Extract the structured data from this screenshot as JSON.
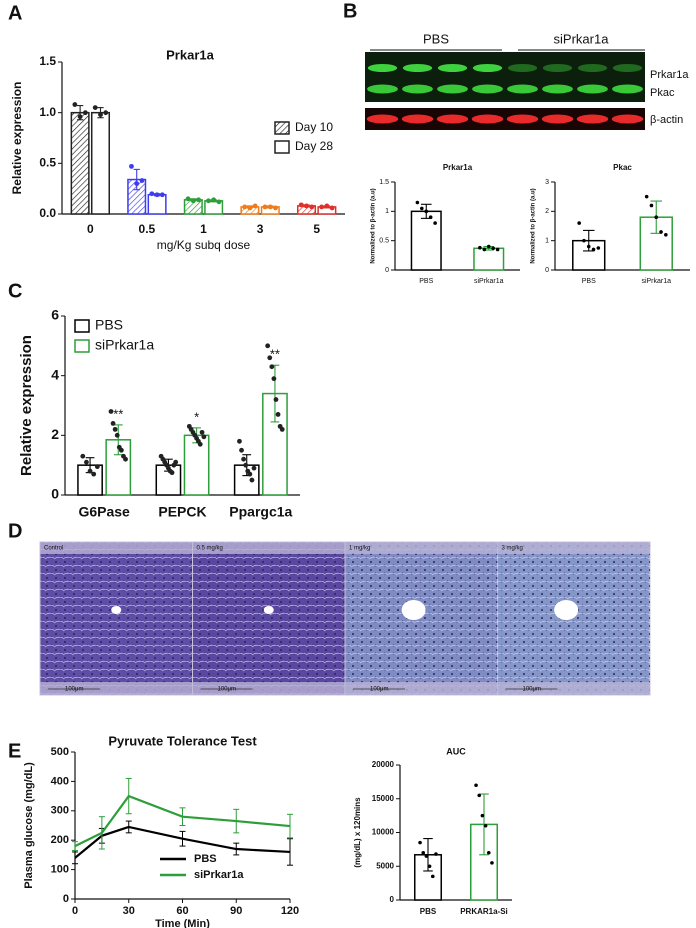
{
  "panel_labels": [
    "A",
    "B",
    "C",
    "D",
    "E"
  ],
  "blot": {
    "groups": [
      "PBS",
      "siPrkar1a"
    ],
    "bands": [
      "Prkar1a",
      "Pkac",
      "β-actin"
    ]
  },
  "histology": {
    "panels": [
      {
        "label": "Control",
        "scale": "100μm"
      },
      {
        "label": "0.5 mg/kg",
        "scale": "100μm"
      },
      {
        "label": "1 mg/kg",
        "scale": "100μm"
      },
      {
        "label": "3 mg/kg",
        "scale": "100μm"
      }
    ]
  },
  "chart_data": [
    {
      "type": "bar",
      "title": "Prkar1a",
      "x_label": "mg/Kg subq dose",
      "y_label": "Relative expression",
      "categories": [
        "0",
        "0.5",
        "1",
        "3",
        "5"
      ],
      "category_colors": [
        "#222222",
        "#3d3df0",
        "#2e9e3a",
        "#f07b1a",
        "#e0302a"
      ],
      "series": [
        {
          "name": "Day 10",
          "color": "#222222",
          "hatch": true,
          "values": [
            1.0,
            0.34,
            0.14,
            0.07,
            0.08
          ],
          "errors": [
            0.07,
            0.1,
            0.01,
            0.01,
            0.01
          ],
          "points": [
            [
              1.08,
              0.96,
              1.0
            ],
            [
              0.47,
              0.3,
              0.33
            ],
            [
              0.15,
              0.13,
              0.14
            ],
            [
              0.07,
              0.06,
              0.08
            ],
            [
              0.09,
              0.08,
              0.07
            ]
          ]
        },
        {
          "name": "Day 28",
          "color": "#222222",
          "values": [
            1.0,
            0.19,
            0.13,
            0.07,
            0.07
          ],
          "errors": [
            0.05,
            0.01,
            0.01,
            0.01,
            0.01
          ],
          "points": [
            [
              1.05,
              0.98,
              1.0
            ],
            [
              0.2,
              0.19,
              0.19
            ],
            [
              0.13,
              0.14,
              0.12
            ],
            [
              0.07,
              0.07,
              0.06
            ],
            [
              0.07,
              0.08,
              0.06
            ]
          ]
        }
      ],
      "ylim": [
        0,
        1.5
      ],
      "yticks": [
        {
          "value": 0,
          "label": "0.0"
        },
        0.5,
        {
          "value": 1,
          "label": "1.0"
        },
        1.5
      ],
      "legend": "center right"
    },
    {
      "type": "bar",
      "title": "Prkar1a",
      "y_label": "Normalized to β-actin (a.u)",
      "categories": [
        "PBS",
        "siPrkar1a"
      ],
      "colors": [
        "#000000",
        "#2e9e3a"
      ],
      "point_color": "#000000",
      "values": [
        1.0,
        0.37
      ],
      "errors": [
        0.12,
        0.03
      ],
      "points": [
        [
          1.15,
          1.05,
          1.0,
          0.9,
          0.8
        ],
        [
          0.38,
          0.35,
          0.4,
          0.37,
          0.35
        ]
      ],
      "ylim": [
        0,
        1.5
      ],
      "yticks": [
        0,
        0.5,
        1,
        1.5
      ]
    },
    {
      "type": "bar",
      "title": "Pkac",
      "y_label": "Normalized to β-actin (a.u)",
      "categories": [
        "PBS",
        "siPrkar1a"
      ],
      "colors": [
        "#000000",
        "#2e9e3a"
      ],
      "point_color": "#000000",
      "values": [
        1.0,
        1.8
      ],
      "errors": [
        0.35,
        0.55
      ],
      "points": [
        [
          1.6,
          1.0,
          0.8,
          0.7,
          0.75
        ],
        [
          2.5,
          2.2,
          1.8,
          1.3,
          1.2
        ]
      ],
      "ylim": [
        0,
        3
      ],
      "yticks": [
        0,
        1,
        2,
        3
      ]
    },
    {
      "type": "bar",
      "y_label": "Relative expression",
      "categories": [
        "G6Pase",
        "PEPCK",
        "Ppargc1a"
      ],
      "point_color": "#222222",
      "series": [
        {
          "name": "PBS",
          "color": "#000000",
          "values": [
            1.0,
            1.0,
            1.0
          ],
          "errors": [
            0.25,
            0.2,
            0.35
          ],
          "points": [
            [
              1.3,
              1.1,
              0.8,
              0.7,
              0.95
            ],
            [
              1.3,
              1.2,
              1.1,
              1.0,
              0.9,
              0.8,
              0.75,
              1.0,
              1.1
            ],
            [
              1.8,
              1.5,
              1.2,
              1.0,
              0.8,
              0.7,
              0.5,
              0.9
            ]
          ]
        },
        {
          "name": "siPrkar1a",
          "color": "#2e9e3a",
          "values": [
            1.85,
            2.0,
            3.4
          ],
          "errors": [
            0.5,
            0.25,
            0.95
          ],
          "points": [
            [
              2.8,
              2.4,
              2.2,
              2.0,
              1.6,
              1.5,
              1.3,
              1.2
            ],
            [
              2.3,
              2.2,
              2.1,
              2.0,
              1.9,
              1.8,
              1.7,
              2.1,
              1.95
            ],
            [
              5.0,
              4.6,
              4.3,
              3.9,
              3.2,
              2.7,
              2.3,
              2.2
            ]
          ]
        }
      ],
      "sig_labels": [
        "**",
        "*",
        "**"
      ],
      "ylim": [
        0,
        6
      ],
      "yticks": [
        0,
        2,
        4,
        6
      ],
      "legend": "upper left"
    },
    {
      "type": "line",
      "title": "Pyruvate Tolerance Test",
      "x_label": "Time (Min)",
      "y_label": "Plasma glucose (mg/dL)",
      "x": [
        0,
        15,
        30,
        60,
        90,
        120
      ],
      "series": [
        {
          "name": "PBS",
          "color": "#000000",
          "values": [
            140,
            215,
            245,
            205,
            170,
            160
          ],
          "errors": [
            20,
            25,
            20,
            25,
            20,
            45
          ]
        },
        {
          "name": "siPrkar1a",
          "color": "#2e9e3a",
          "values": [
            180,
            225,
            350,
            280,
            265,
            248
          ],
          "errors": [
            15,
            55,
            60,
            30,
            40,
            40
          ]
        }
      ],
      "xlim": [
        0,
        120
      ],
      "xticks": [
        0,
        30,
        60,
        90,
        120
      ],
      "ylim": [
        0,
        500
      ],
      "yticks": [
        0,
        100,
        200,
        300,
        400,
        500
      ],
      "legend": "lower right"
    },
    {
      "type": "bar",
      "title": "AUC",
      "y_label": "(mg/dL) x 120mins",
      "categories": [
        "PBS",
        "PRKAR1a-Si"
      ],
      "colors": [
        "#000000",
        "#2e9e3a"
      ],
      "point_color": "#000000",
      "values": [
        6700,
        11200
      ],
      "errors": [
        2400,
        4500
      ],
      "points": [
        [
          8500,
          7000,
          6500,
          5000,
          3500,
          6800
        ],
        [
          17000,
          15500,
          12500,
          11000,
          7000,
          5500
        ]
      ],
      "ylim": [
        0,
        20000
      ],
      "yticks": [
        0,
        5000,
        10000,
        15000,
        20000
      ]
    }
  ]
}
